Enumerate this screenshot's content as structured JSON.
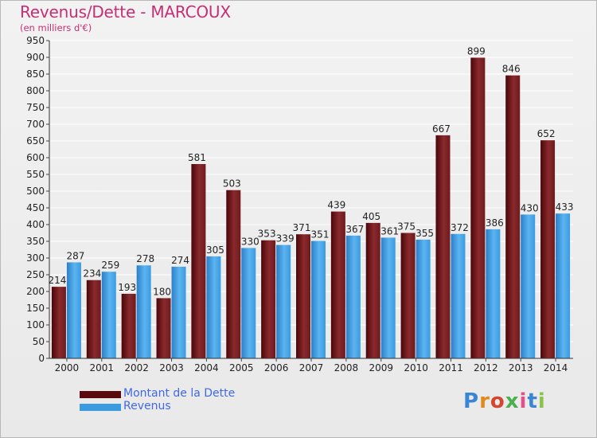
{
  "title": "Revenus/Dette - MARCOUX",
  "subtitle": "(en milliers d'€)",
  "logo": {
    "text": "Proxiti",
    "letters": [
      "P",
      "r",
      "o",
      "x",
      "i",
      "t",
      "i"
    ],
    "colors": [
      "#3a86d4",
      "#e08a1e",
      "#d6452e",
      "#4caf50",
      "#e84d8a",
      "#3a86d4",
      "#8bc34a"
    ]
  },
  "colors": {
    "dette": "#7b1f22",
    "revenus": "#3a9be0",
    "grid": "#ffffff",
    "title": "#c62f74"
  },
  "legend": [
    {
      "label": "Montant de la Dette",
      "color": "#5a0a0e"
    },
    {
      "label": "Revenus",
      "color": "#3a9be0"
    }
  ],
  "chart_data": {
    "type": "bar",
    "title": "Revenus/Dette - MARCOUX",
    "ylabel": "(en milliers d'€)",
    "ylim": [
      0,
      950
    ],
    "yticks": [
      0,
      50,
      100,
      150,
      200,
      250,
      300,
      350,
      400,
      450,
      500,
      550,
      600,
      650,
      700,
      750,
      800,
      850,
      900,
      950
    ],
    "grid": true,
    "categories": [
      "2000",
      "2001",
      "2002",
      "2003",
      "2004",
      "2005",
      "2006",
      "2007",
      "2008",
      "2009",
      "2010",
      "2011",
      "2012",
      "2013",
      "2014"
    ],
    "series": [
      {
        "name": "Montant de la Dette",
        "values": [
          214,
          234,
          193,
          180,
          581,
          503,
          353,
          371,
          439,
          405,
          375,
          667,
          899,
          846,
          652
        ]
      },
      {
        "name": "Revenus",
        "values": [
          287,
          259,
          278,
          274,
          305,
          330,
          339,
          351,
          367,
          361,
          355,
          372,
          386,
          430,
          433
        ]
      }
    ]
  }
}
